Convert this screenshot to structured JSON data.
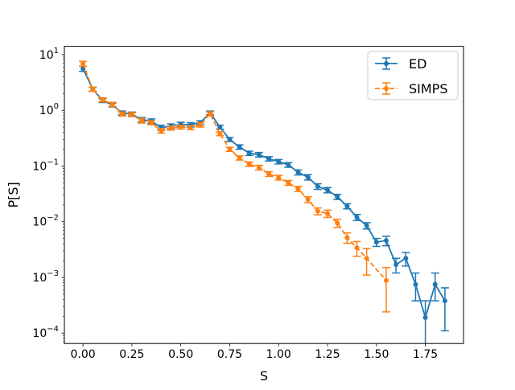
{
  "chart_data": {
    "type": "line",
    "title": "",
    "xlabel": "S",
    "ylabel": "P[S]",
    "yscale": "log",
    "xlim": [
      -0.095,
      1.945
    ],
    "ylim": [
      6.5e-05,
      14.1
    ],
    "x_ticks": [
      0,
      0.25,
      0.5,
      0.75,
      1.0,
      1.25,
      1.5,
      1.75
    ],
    "x_tick_labels": [
      "0.00",
      "0.25",
      "0.50",
      "0.75",
      "1.00",
      "1.25",
      "1.50",
      "1.75"
    ],
    "y_ticks": [
      0.0001,
      0.001,
      0.01,
      0.1,
      1,
      10
    ],
    "y_tick_labels": [
      {
        "base": "10",
        "exp": "−4"
      },
      {
        "base": "10",
        "exp": "−3"
      },
      {
        "base": "10",
        "exp": "−2"
      },
      {
        "base": "10",
        "exp": "−1"
      },
      {
        "base": "10",
        "exp": "0"
      },
      {
        "base": "10",
        "exp": "1"
      }
    ],
    "legend": {
      "position": "top-right"
    },
    "series": [
      {
        "name": "ED",
        "color": "#1f77b4",
        "linestyle": "solid",
        "x": [
          0.0,
          0.05,
          0.1,
          0.15,
          0.2,
          0.25,
          0.3,
          0.35,
          0.4,
          0.45,
          0.5,
          0.55,
          0.6,
          0.65,
          0.7,
          0.75,
          0.8,
          0.85,
          0.9,
          0.95,
          1.0,
          1.05,
          1.1,
          1.15,
          1.2,
          1.25,
          1.3,
          1.35,
          1.4,
          1.45,
          1.5,
          1.55,
          1.6,
          1.65,
          1.7,
          1.75,
          1.8,
          1.85
        ],
        "y": [
          5.6,
          2.4,
          1.5,
          1.25,
          0.9,
          0.86,
          0.68,
          0.64,
          0.49,
          0.52,
          0.56,
          0.55,
          0.6,
          0.9,
          0.5,
          0.3,
          0.22,
          0.17,
          0.16,
          0.135,
          0.12,
          0.105,
          0.077,
          0.063,
          0.043,
          0.037,
          0.028,
          0.019,
          0.012,
          0.0085,
          0.0043,
          0.0046,
          0.0017,
          0.0022,
          0.00075,
          0.00019,
          0.00075,
          0.00038
        ],
        "err_low": [
          5.0,
          2.2,
          1.38,
          1.15,
          0.83,
          0.79,
          0.62,
          0.58,
          0.44,
          0.47,
          0.51,
          0.5,
          0.55,
          0.83,
          0.46,
          0.275,
          0.2,
          0.155,
          0.145,
          0.123,
          0.109,
          0.095,
          0.069,
          0.056,
          0.038,
          0.033,
          0.025,
          0.017,
          0.0105,
          0.0074,
          0.0036,
          0.0037,
          0.0012,
          0.0016,
          0.00038,
          3e-05,
          0.00038,
          0.00011
        ],
        "err_high": [
          6.2,
          2.6,
          1.62,
          1.35,
          0.97,
          0.93,
          0.74,
          0.7,
          0.54,
          0.57,
          0.61,
          0.6,
          0.65,
          0.97,
          0.54,
          0.325,
          0.24,
          0.185,
          0.175,
          0.147,
          0.131,
          0.115,
          0.085,
          0.07,
          0.048,
          0.041,
          0.031,
          0.021,
          0.0135,
          0.0096,
          0.005,
          0.0055,
          0.0022,
          0.0028,
          0.0012,
          0.00038,
          0.0012,
          0.00065
        ]
      },
      {
        "name": "SIMPS",
        "color": "#ff7f0e",
        "linestyle": "dashed",
        "x": [
          0.0,
          0.05,
          0.1,
          0.15,
          0.2,
          0.25,
          0.3,
          0.35,
          0.4,
          0.45,
          0.5,
          0.55,
          0.6,
          0.65,
          0.7,
          0.75,
          0.8,
          0.85,
          0.9,
          0.95,
          1.0,
          1.05,
          1.1,
          1.15,
          1.2,
          1.25,
          1.3,
          1.35,
          1.4,
          1.45,
          1.55
        ],
        "y": [
          6.9,
          2.4,
          1.55,
          1.28,
          0.86,
          0.84,
          0.65,
          0.6,
          0.43,
          0.48,
          0.5,
          0.49,
          0.55,
          0.87,
          0.38,
          0.2,
          0.14,
          0.108,
          0.094,
          0.072,
          0.062,
          0.05,
          0.039,
          0.025,
          0.0155,
          0.014,
          0.0095,
          0.0052,
          0.0034,
          0.0022,
          0.00088
        ],
        "err_low": [
          6.2,
          2.2,
          1.42,
          1.17,
          0.79,
          0.77,
          0.59,
          0.55,
          0.39,
          0.44,
          0.46,
          0.45,
          0.5,
          0.8,
          0.35,
          0.183,
          0.128,
          0.098,
          0.085,
          0.065,
          0.056,
          0.045,
          0.035,
          0.022,
          0.0133,
          0.0119,
          0.0079,
          0.0041,
          0.0024,
          0.0011,
          0.00024
        ],
        "err_high": [
          7.6,
          2.6,
          1.68,
          1.39,
          0.93,
          0.91,
          0.71,
          0.65,
          0.47,
          0.52,
          0.54,
          0.53,
          0.6,
          0.94,
          0.41,
          0.217,
          0.152,
          0.118,
          0.103,
          0.079,
          0.068,
          0.055,
          0.043,
          0.028,
          0.0177,
          0.0161,
          0.0111,
          0.0063,
          0.0044,
          0.0033,
          0.0015
        ]
      }
    ]
  }
}
